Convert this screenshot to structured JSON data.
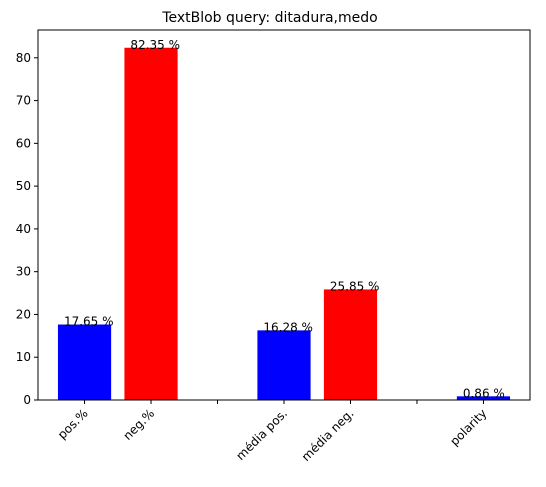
{
  "chart_data": {
    "type": "bar",
    "title": "TextBlob query: ditadura,medo",
    "xlabel": "",
    "ylabel": "",
    "ylim": [
      0,
      86.5
    ],
    "yticks": [
      0,
      10,
      20,
      30,
      40,
      50,
      60,
      70,
      80
    ],
    "grid": false,
    "bars": [
      {
        "label": "pos.%",
        "value": 17.65,
        "value_label": "17.65 %",
        "color": "#0000ff",
        "x": 0
      },
      {
        "label": "neg.%",
        "value": 82.35,
        "value_label": "82.35 %",
        "color": "#ff0000",
        "x": 1
      },
      {
        "label": "média pos.",
        "value": 16.28,
        "value_label": "16.28 %",
        "color": "#0000ff",
        "x": 3
      },
      {
        "label": "média neg.",
        "value": 25.85,
        "value_label": "25.85 %",
        "color": "#ff0000",
        "x": 4
      },
      {
        "label": "polarity",
        "value": 0.86,
        "value_label": "0.86 %",
        "color": "#0000ff",
        "x": 6
      }
    ],
    "x_ticks_unlabeled": [
      2,
      5
    ]
  }
}
